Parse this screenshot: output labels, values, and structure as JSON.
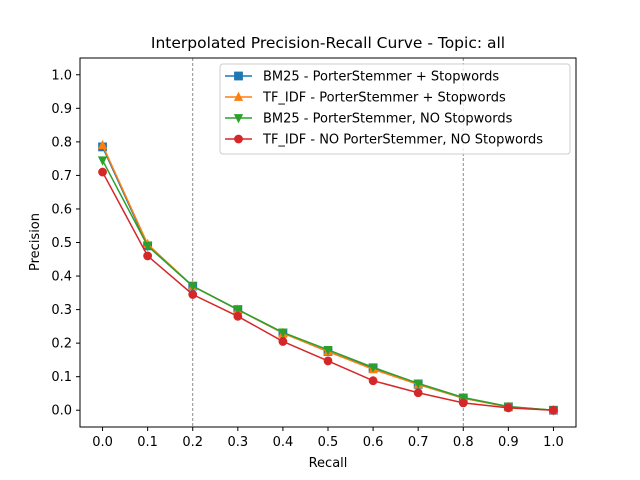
{
  "chart_data": {
    "type": "line",
    "title": "Interpolated Precision-Recall Curve - Topic: all",
    "xlabel": "Recall",
    "ylabel": "Precision",
    "xlim": [
      -0.05,
      1.05
    ],
    "ylim": [
      -0.05,
      1.05
    ],
    "xticks": [
      "0.0",
      "0.1",
      "0.2",
      "0.3",
      "0.4",
      "0.5",
      "0.6",
      "0.7",
      "0.8",
      "0.9",
      "1.0"
    ],
    "yticks": [
      "0.0",
      "0.1",
      "0.2",
      "0.3",
      "0.4",
      "0.5",
      "0.6",
      "0.7",
      "0.8",
      "0.9",
      "1.0"
    ],
    "vlines": [
      0.2,
      0.8
    ],
    "grid": false,
    "legend_position": "upper right",
    "x": [
      0.0,
      0.1,
      0.2,
      0.3,
      0.4,
      0.5,
      0.6,
      0.7,
      0.8,
      0.9,
      1.0
    ],
    "series": [
      {
        "name": "BM25 - PorterStemmer + Stopwords",
        "marker": "square",
        "color": "#1f77b4",
        "values": [
          0.785,
          0.49,
          0.37,
          0.3,
          0.23,
          0.175,
          0.125,
          0.077,
          0.036,
          0.01,
          0.0
        ]
      },
      {
        "name": "TF_IDF - PorterStemmer + Stopwords",
        "marker": "triangle-up",
        "color": "#ff7f0e",
        "values": [
          0.79,
          0.495,
          0.37,
          0.3,
          0.23,
          0.175,
          0.122,
          0.077,
          0.036,
          0.01,
          0.0
        ]
      },
      {
        "name": "BM25 - PorterStemmer, NO Stopwords",
        "marker": "triangle-down",
        "color": "#2ca02c",
        "values": [
          0.745,
          0.49,
          0.37,
          0.3,
          0.232,
          0.18,
          0.128,
          0.08,
          0.038,
          0.011,
          0.0
        ]
      },
      {
        "name": "TF_IDF - NO PorterStemmer, NO Stopwords",
        "marker": "circle",
        "color": "#d62728",
        "values": [
          0.71,
          0.46,
          0.345,
          0.28,
          0.205,
          0.147,
          0.088,
          0.052,
          0.022,
          0.007,
          0.0
        ]
      }
    ]
  }
}
